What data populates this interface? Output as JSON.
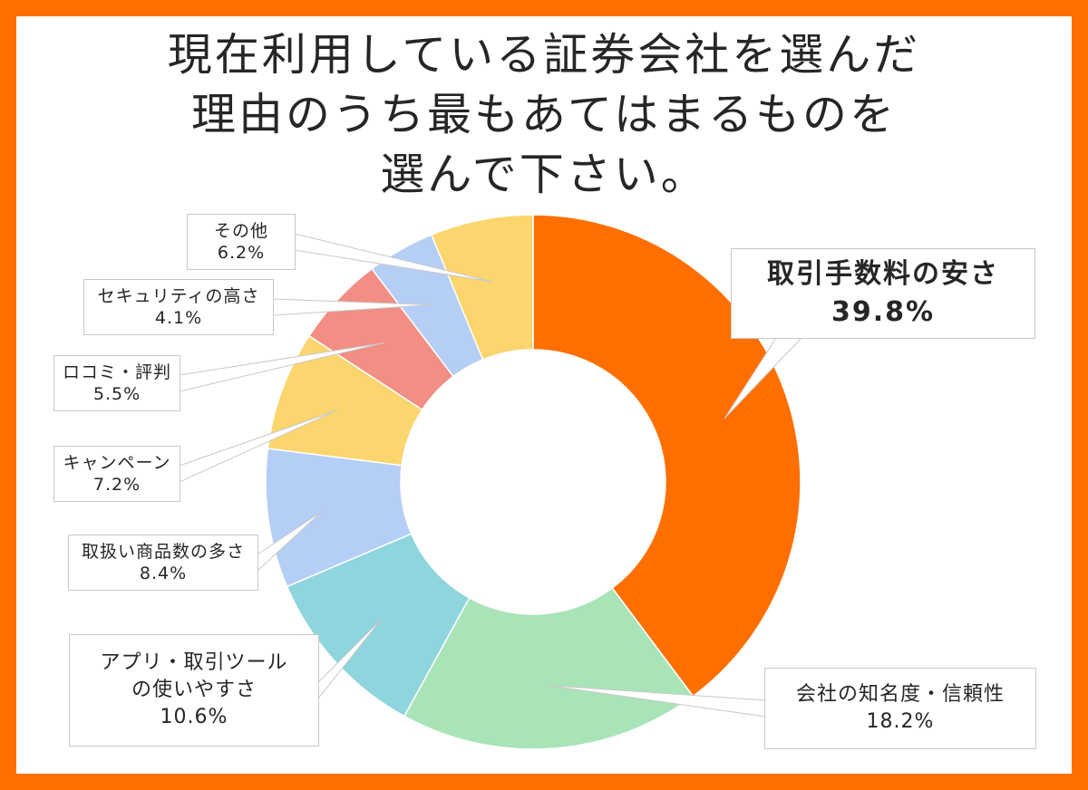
{
  "title": {
    "lines": [
      "現在利用している証券会社を選んだ",
      "理由のうち最もあてはまるものを",
      "選んで下さい。"
    ]
  },
  "colors": {
    "frame": "#FF6F00",
    "slices": [
      "#FF6F00",
      "#A8E4B8",
      "#8FD5DD",
      "#B5CEF6",
      "#FBD56D",
      "#F28E84",
      "#B5CEF6",
      "#FBD56D"
    ]
  },
  "chart_data": {
    "type": "pie",
    "variant": "donut",
    "title": "現在利用している証券会社を選んだ理由のうち最もあてはまるものを選んで下さい。",
    "categories": [
      "取引手数料の安さ",
      "会社の知名度・信頼性",
      "アプリ・取引ツールの使いやすさ",
      "取扱い商品数の多さ",
      "キャンペーン",
      "ロコミ・評判",
      "セキュリティの高さ",
      "その他"
    ],
    "values": [
      39.8,
      18.2,
      10.6,
      8.4,
      7.2,
      5.5,
      4.1,
      6.2
    ],
    "value_unit": "%",
    "start": "12 o'clock",
    "direction": "clockwise",
    "legend": "callout labels"
  },
  "labels": [
    {
      "lines": [
        "取引手数料の安さ"
      ],
      "value": "39.8%"
    },
    {
      "lines": [
        "会社の知名度・信頼性"
      ],
      "value": "18.2%"
    },
    {
      "lines": [
        "アプリ・取引ツール",
        "の使いやすさ"
      ],
      "value": "10.6%"
    },
    {
      "lines": [
        "取扱い商品数の多さ"
      ],
      "value": "8.4%"
    },
    {
      "lines": [
        "キャンペーン"
      ],
      "value": "7.2%"
    },
    {
      "lines": [
        "ロコミ・評判"
      ],
      "value": "5.5%"
    },
    {
      "lines": [
        "セキュリティの高さ"
      ],
      "value": "4.1%"
    },
    {
      "lines": [
        "その他"
      ],
      "value": "6.2%"
    }
  ]
}
